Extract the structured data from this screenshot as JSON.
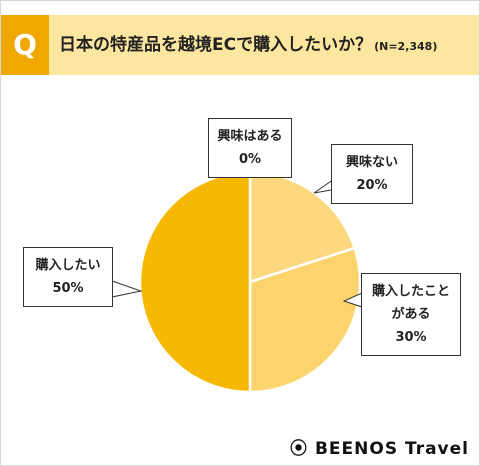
{
  "header": {
    "badge": "Q"
  },
  "chart_data": {
    "type": "pie",
    "title": "日本の特産品を越境ECで購入したいか？",
    "subtitle": "(N=2,348)",
    "categories": [
      "興味はある",
      "興味ない",
      "購入したことがある",
      "購入したい"
    ],
    "values": [
      0,
      20,
      30,
      50
    ],
    "value_labels": [
      "0%",
      "20%",
      "30%",
      "50%"
    ],
    "colors": [
      "#fde08f",
      "#fdd87e",
      "#fdd46c",
      "#f6b800"
    ]
  },
  "footer": {
    "logo": "BEENOS Travel"
  }
}
